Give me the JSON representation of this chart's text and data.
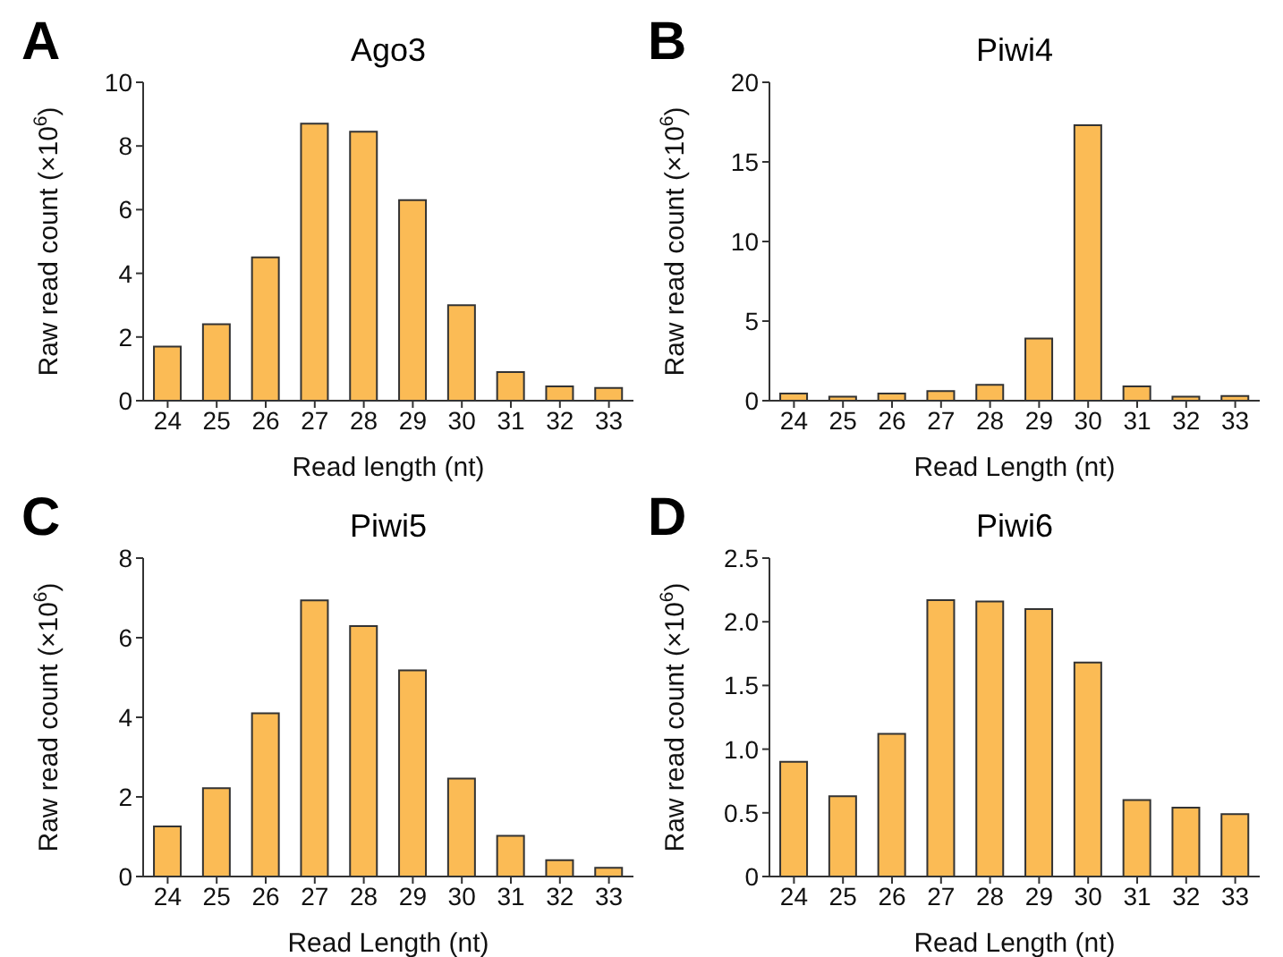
{
  "chart_data": [
    {
      "type": "bar",
      "title": "Ago3",
      "xlabel": "Read length (nt)",
      "ylabel": "Raw read count (×10$^{6}$)",
      "annotations": [
        "A"
      ],
      "categories": [
        "24",
        "25",
        "26",
        "27",
        "28",
        "29",
        "30",
        "31",
        "32",
        "33"
      ],
      "values": [
        1.7,
        2.4,
        4.5,
        8.7,
        8.45,
        6.3,
        3.0,
        0.9,
        0.45,
        0.4
      ],
      "color": "#fbbb55",
      "ylim": [
        0,
        10
      ],
      "yticks": [
        0,
        2,
        4,
        6,
        8,
        10
      ],
      "grid": false
    },
    {
      "type": "bar",
      "title": "Piwi4",
      "xlabel": "Read Length (nt)",
      "ylabel": "Raw read count (×10$^{6}$)",
      "annotations": [
        "B"
      ],
      "categories": [
        "24",
        "25",
        "26",
        "27",
        "28",
        "29",
        "30",
        "31",
        "32",
        "33"
      ],
      "values": [
        0.45,
        0.25,
        0.45,
        0.6,
        1.0,
        3.9,
        17.3,
        0.9,
        0.25,
        0.3
      ],
      "color": "#fbbb55",
      "ylim": [
        0,
        20
      ],
      "yticks": [
        0,
        5,
        10,
        15,
        20
      ],
      "grid": false
    },
    {
      "type": "bar",
      "title": "Piwi5",
      "xlabel": "Read Length (nt)",
      "ylabel": "Raw read count (×10$^{6}$)",
      "annotations": [
        "C"
      ],
      "categories": [
        "24",
        "25",
        "26",
        "27",
        "28",
        "29",
        "30",
        "31",
        "32",
        "33"
      ],
      "values": [
        1.26,
        2.22,
        4.1,
        6.94,
        6.29,
        5.18,
        2.46,
        1.02,
        0.41,
        0.22
      ],
      "color": "#fbbb55",
      "ylim": [
        0,
        8
      ],
      "yticks": [
        0,
        2,
        4,
        6,
        8
      ],
      "grid": false
    },
    {
      "type": "bar",
      "title": "Piwi6",
      "xlabel": "Read Length (nt)",
      "ylabel": "Raw read count (×10$^{6}$)",
      "annotations": [
        "D"
      ],
      "categories": [
        "24",
        "25",
        "26",
        "27",
        "28",
        "29",
        "30",
        "31",
        "32",
        "33"
      ],
      "values": [
        0.9,
        0.63,
        1.12,
        2.17,
        2.16,
        2.1,
        1.68,
        0.6,
        0.54,
        0.49
      ],
      "color": "#fbbb55",
      "ylim": [
        0,
        2.5
      ],
      "yticks": [
        0,
        0.5,
        {
          "value": 1,
          "label": "1.0"
        },
        1.5,
        {
          "value": 2,
          "label": "2.0"
        },
        2.5
      ],
      "grid": false
    }
  ]
}
